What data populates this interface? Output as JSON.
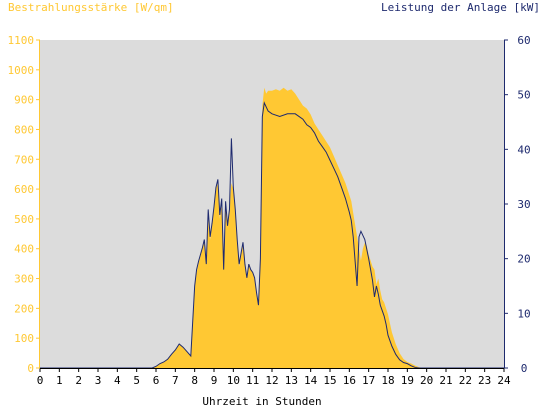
{
  "colors": {
    "plot_background": "#dcdcdc",
    "irradiance": "#ffc833",
    "power": "#1e2a6e",
    "axis": "#000000"
  },
  "chart_data": {
    "type": "area",
    "title_left": "Bestrahlungsstärke [W/qm]",
    "title_right": "Leistung der Anlage [kW]",
    "xlabel": "Uhrzeit in Stunden",
    "xlim": [
      0,
      24
    ],
    "x_ticks": [
      "0",
      "1",
      "2",
      "3",
      "4",
      "5",
      "6",
      "7",
      "8",
      "9",
      "10",
      "11",
      "12",
      "13",
      "14",
      "15",
      "16",
      "17",
      "18",
      "19",
      "20",
      "21",
      "22",
      "23",
      "24"
    ],
    "ylim_left": [
      0,
      1100
    ],
    "y_ticks_left": [
      "0",
      "100",
      "200",
      "300",
      "400",
      "500",
      "600",
      "700",
      "800",
      "900",
      "1000",
      "1100"
    ],
    "ylim_right": [
      0,
      60
    ],
    "y_ticks_right": [
      "0",
      "10",
      "20",
      "30",
      "40",
      "50",
      "60"
    ],
    "irradiance_series": {
      "x": [
        0,
        5.8,
        6.0,
        6.2,
        6.4,
        6.6,
        6.8,
        7.0,
        7.2,
        7.4,
        7.6,
        7.8,
        8.0,
        8.1,
        8.2,
        8.4,
        8.5,
        8.6,
        8.7,
        8.8,
        8.9,
        9.0,
        9.1,
        9.2,
        9.3,
        9.4,
        9.5,
        9.6,
        9.7,
        9.8,
        9.9,
        10.0,
        10.1,
        10.2,
        10.3,
        10.4,
        10.5,
        10.6,
        10.7,
        10.8,
        10.9,
        11.0,
        11.1,
        11.2,
        11.3,
        11.4,
        11.5,
        11.6,
        11.7,
        11.8,
        12.0,
        12.2,
        12.4,
        12.6,
        12.8,
        13.0,
        13.2,
        13.4,
        13.6,
        13.8,
        14.0,
        14.2,
        14.4,
        14.6,
        14.8,
        15.0,
        15.2,
        15.4,
        15.6,
        15.8,
        16.0,
        16.1,
        16.2,
        16.3,
        16.4,
        16.5,
        16.6,
        16.7,
        16.8,
        16.9,
        17.0,
        17.1,
        17.2,
        17.3,
        17.4,
        17.5,
        17.6,
        17.7,
        17.8,
        17.9,
        18.0,
        18.2,
        18.4,
        18.6,
        18.8,
        19.0,
        19.2,
        19.4,
        19.6,
        19.8,
        20.0,
        24
      ],
      "values": [
        0,
        0,
        5,
        15,
        20,
        30,
        45,
        60,
        80,
        70,
        55,
        40,
        270,
        320,
        350,
        400,
        420,
        350,
        500,
        430,
        480,
        540,
        600,
        620,
        500,
        550,
        330,
        560,
        480,
        530,
        620,
        600,
        540,
        430,
        340,
        380,
        410,
        350,
        300,
        350,
        330,
        320,
        300,
        250,
        210,
        360,
        880,
        940,
        920,
        930,
        930,
        935,
        930,
        940,
        930,
        935,
        920,
        900,
        880,
        870,
        850,
        820,
        800,
        780,
        760,
        740,
        710,
        680,
        650,
        620,
        580,
        560,
        520,
        480,
        440,
        400,
        360,
        400,
        420,
        410,
        380,
        360,
        340,
        330,
        280,
        300,
        260,
        230,
        220,
        200,
        180,
        120,
        80,
        50,
        30,
        20,
        15,
        8,
        3,
        0,
        0,
        0
      ]
    },
    "power_series": {
      "x": [
        0,
        5.8,
        6.0,
        6.2,
        6.4,
        6.6,
        6.8,
        7.0,
        7.2,
        7.4,
        7.6,
        7.8,
        8.0,
        8.1,
        8.2,
        8.4,
        8.5,
        8.6,
        8.7,
        8.8,
        8.9,
        9.0,
        9.1,
        9.2,
        9.3,
        9.4,
        9.5,
        9.6,
        9.7,
        9.8,
        9.9,
        10.0,
        10.1,
        10.2,
        10.3,
        10.4,
        10.5,
        10.6,
        10.7,
        10.8,
        10.9,
        11.0,
        11.1,
        11.2,
        11.3,
        11.4,
        11.5,
        11.6,
        11.8,
        12.0,
        12.4,
        12.8,
        13.2,
        13.6,
        13.8,
        14.0,
        14.2,
        14.4,
        14.6,
        14.8,
        15.0,
        15.2,
        15.4,
        15.6,
        15.8,
        16.0,
        16.1,
        16.2,
        16.3,
        16.4,
        16.5,
        16.6,
        16.8,
        17.0,
        17.1,
        17.2,
        17.3,
        17.4,
        17.5,
        17.6,
        17.7,
        17.8,
        17.9,
        18.0,
        18.2,
        18.4,
        18.6,
        18.8,
        19.0,
        19.2,
        19.4,
        19.6,
        19.8,
        20.0,
        24
      ],
      "values": [
        0,
        0,
        0.3,
        0.8,
        1.1,
        1.6,
        2.5,
        3.3,
        4.4,
        3.8,
        3.0,
        2.2,
        15,
        18,
        19.5,
        22,
        23.5,
        19,
        29,
        24,
        26.5,
        29.5,
        33,
        34.5,
        28,
        31,
        18,
        30.5,
        26,
        29,
        42,
        33,
        29,
        23.5,
        19,
        21,
        23,
        19,
        16.5,
        19,
        18,
        17.5,
        16.5,
        13.8,
        11.5,
        20,
        46,
        48.5,
        47,
        46.5,
        46,
        46.5,
        46.5,
        45.5,
        44.5,
        44,
        43,
        41.5,
        40.5,
        39.5,
        38,
        36.5,
        35,
        33,
        31,
        28.5,
        27,
        24,
        19.5,
        15,
        24,
        25,
        23.5,
        20,
        18,
        16,
        13,
        15,
        13.5,
        11.5,
        10.5,
        9.5,
        8,
        6,
        4,
        2.5,
        1.5,
        1,
        0.8,
        0.4,
        0.1,
        0,
        0,
        0,
        0
      ]
    },
    "grid": false,
    "legend": "none"
  }
}
